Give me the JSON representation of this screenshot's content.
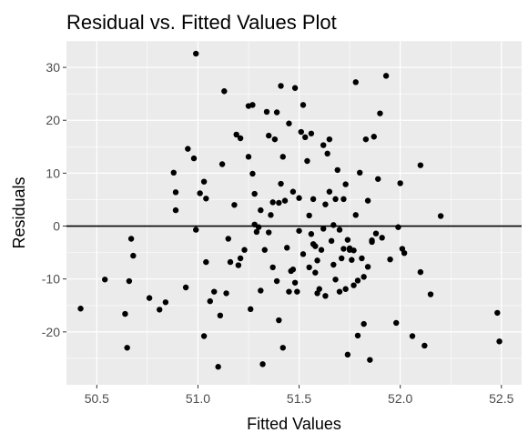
{
  "chart_data": {
    "type": "scatter",
    "title": "Residual vs. Fitted Values Plot",
    "xlabel": "Fitted Values",
    "ylabel": "Residuals",
    "xlim": [
      50.35,
      52.6
    ],
    "ylim": [
      -30,
      35
    ],
    "xticks": [
      50.5,
      51.0,
      51.5,
      52.0,
      52.5
    ],
    "xtick_labels": [
      "50.5",
      "51.0",
      "51.5",
      "52.0",
      "52.5"
    ],
    "yticks": [
      -20,
      -10,
      0,
      10,
      20,
      30
    ],
    "ytick_labels": [
      "-20",
      "-10",
      "0",
      "10",
      "20",
      "30"
    ],
    "grid": true,
    "reference_line_y": 0,
    "colors": {
      "panel": "#ebebeb",
      "grid_major": "#ffffff",
      "points": "#000000",
      "refline": "#000000",
      "ticks": "#4d4d4d"
    },
    "points": [
      [
        50.42,
        -15.6
      ],
      [
        50.54,
        -10.1
      ],
      [
        50.64,
        -16.6
      ],
      [
        50.65,
        -23.0
      ],
      [
        50.66,
        -10.4
      ],
      [
        50.67,
        -2.4
      ],
      [
        50.68,
        -5.6
      ],
      [
        50.76,
        -13.6
      ],
      [
        50.81,
        -15.8
      ],
      [
        50.84,
        -14.4
      ],
      [
        50.88,
        10.1
      ],
      [
        50.89,
        6.4
      ],
      [
        50.89,
        3.0
      ],
      [
        50.94,
        -11.6
      ],
      [
        50.95,
        14.6
      ],
      [
        50.98,
        12.8
      ],
      [
        50.99,
        -0.7
      ],
      [
        50.99,
        32.6
      ],
      [
        51.01,
        6.2
      ],
      [
        51.03,
        8.4
      ],
      [
        51.04,
        5.2
      ],
      [
        51.03,
        -20.8
      ],
      [
        51.04,
        -6.8
      ],
      [
        51.06,
        -14.2
      ],
      [
        51.08,
        -12.4
      ],
      [
        51.1,
        -26.6
      ],
      [
        51.11,
        -16.9
      ],
      [
        51.12,
        11.7
      ],
      [
        51.13,
        25.5
      ],
      [
        51.14,
        -12.7
      ],
      [
        51.15,
        -2.4
      ],
      [
        51.16,
        -6.8
      ],
      [
        51.18,
        4.0
      ],
      [
        51.19,
        17.3
      ],
      [
        51.2,
        -7.4
      ],
      [
        51.21,
        16.6
      ],
      [
        51.21,
        -6.1
      ],
      [
        51.23,
        -4.5
      ],
      [
        51.25,
        22.7
      ],
      [
        51.25,
        13.1
      ],
      [
        51.26,
        -15.7
      ],
      [
        51.27,
        22.9
      ],
      [
        51.27,
        9.9
      ],
      [
        51.28,
        6.1
      ],
      [
        51.28,
        0.3
      ],
      [
        51.29,
        -1.1
      ],
      [
        51.3,
        -0.2
      ],
      [
        51.31,
        3.0
      ],
      [
        51.31,
        -12.2
      ],
      [
        51.32,
        -26.1
      ],
      [
        51.33,
        -4.5
      ],
      [
        51.34,
        21.6
      ],
      [
        51.35,
        17.1
      ],
      [
        51.35,
        -1.2
      ],
      [
        51.36,
        2.1
      ],
      [
        51.37,
        4.5
      ],
      [
        51.37,
        -7.8
      ],
      [
        51.38,
        16.4
      ],
      [
        51.39,
        21.5
      ],
      [
        51.39,
        -10.4
      ],
      [
        51.4,
        4.4
      ],
      [
        51.4,
        -17.8
      ],
      [
        51.41,
        8.0
      ],
      [
        51.41,
        26.5
      ],
      [
        51.42,
        13.1
      ],
      [
        51.42,
        -23.0
      ],
      [
        51.43,
        4.8
      ],
      [
        51.44,
        -4.1
      ],
      [
        51.45,
        -12.4
      ],
      [
        51.45,
        19.4
      ],
      [
        51.46,
        -8.5
      ],
      [
        51.47,
        -8.2
      ],
      [
        51.47,
        6.5
      ],
      [
        51.48,
        26.1
      ],
      [
        51.48,
        -10.7
      ],
      [
        51.49,
        -12.4
      ],
      [
        51.5,
        -0.9
      ],
      [
        51.5,
        5.3
      ],
      [
        51.51,
        17.8
      ],
      [
        51.52,
        -5.3
      ],
      [
        51.52,
        22.9
      ],
      [
        51.53,
        16.8
      ],
      [
        51.54,
        12.3
      ],
      [
        51.55,
        2.0
      ],
      [
        51.55,
        -7.8
      ],
      [
        51.56,
        17.5
      ],
      [
        51.56,
        -1.5
      ],
      [
        51.57,
        -3.4
      ],
      [
        51.57,
        5.1
      ],
      [
        51.58,
        -8.8
      ],
      [
        51.58,
        -3.8
      ],
      [
        51.59,
        -6.5
      ],
      [
        51.59,
        -12.7
      ],
      [
        51.6,
        -11.9
      ],
      [
        51.61,
        -4.5
      ],
      [
        51.62,
        15.3
      ],
      [
        51.62,
        -0.5
      ],
      [
        51.63,
        4.1
      ],
      [
        51.63,
        -13.2
      ],
      [
        51.64,
        13.7
      ],
      [
        51.65,
        16.4
      ],
      [
        51.65,
        6.5
      ],
      [
        51.66,
        -2.8
      ],
      [
        51.67,
        -7.3
      ],
      [
        51.67,
        0.2
      ],
      [
        51.68,
        5.1
      ],
      [
        51.68,
        -10.1
      ],
      [
        51.69,
        10.6
      ],
      [
        51.7,
        -12.4
      ],
      [
        51.7,
        -0.7
      ],
      [
        51.71,
        -6.1
      ],
      [
        51.72,
        -4.3
      ],
      [
        51.72,
        5.1
      ],
      [
        51.73,
        7.9
      ],
      [
        51.73,
        -11.9
      ],
      [
        51.74,
        -24.3
      ],
      [
        51.74,
        -2.6
      ],
      [
        51.75,
        -4.5
      ],
      [
        51.75,
        -4.2
      ],
      [
        51.76,
        -6.4
      ],
      [
        51.77,
        -4.6
      ],
      [
        51.77,
        -11.2
      ],
      [
        51.78,
        27.2
      ],
      [
        51.78,
        2.1
      ],
      [
        51.79,
        -20.7
      ],
      [
        51.79,
        -10.3
      ],
      [
        51.8,
        10.1
      ],
      [
        51.81,
        -6.1
      ],
      [
        51.82,
        -9.6
      ],
      [
        51.82,
        -18.5
      ],
      [
        51.83,
        16.4
      ],
      [
        51.84,
        -7.7
      ],
      [
        51.84,
        4.8
      ],
      [
        51.85,
        -25.3
      ],
      [
        51.86,
        -3.0
      ],
      [
        51.86,
        -2.7
      ],
      [
        51.87,
        16.9
      ],
      [
        51.88,
        -1.4
      ],
      [
        51.89,
        8.9
      ],
      [
        51.9,
        21.3
      ],
      [
        51.91,
        -2.2
      ],
      [
        51.93,
        28.4
      ],
      [
        51.95,
        -6.3
      ],
      [
        51.98,
        -18.3
      ],
      [
        51.99,
        -0.2
      ],
      [
        52.0,
        8.1
      ],
      [
        52.01,
        -4.3
      ],
      [
        52.02,
        -5.1
      ],
      [
        52.06,
        -20.8
      ],
      [
        52.1,
        11.5
      ],
      [
        52.1,
        -8.7
      ],
      [
        52.12,
        -22.6
      ],
      [
        52.15,
        -12.9
      ],
      [
        52.2,
        1.9
      ],
      [
        52.48,
        -16.4
      ],
      [
        52.49,
        -21.8
      ]
    ]
  }
}
